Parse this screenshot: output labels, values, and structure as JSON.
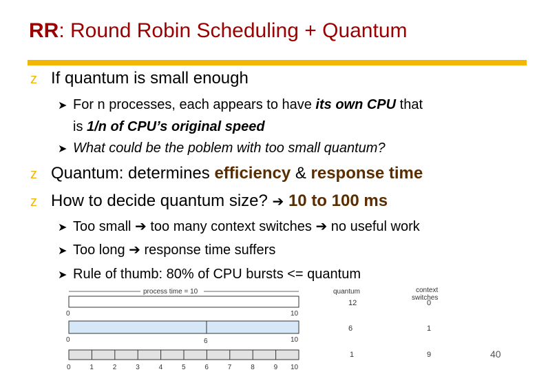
{
  "title": {
    "prefix": "RR",
    "rest": ": Round Robin Scheduling + Quantum"
  },
  "bullets": {
    "q_small": "If quantum is small enough",
    "n_proc_a": "For n processes, each appears to have ",
    "n_proc_b": "its own CPU",
    "n_proc_c": " that",
    "n_proc_d": "is ",
    "n_proc_e": "1/n of CPU’s original speed",
    "problem": "What could be the poblem with too small quantum?",
    "quantum_a": "Quantum: determines ",
    "quantum_b": "efficiency",
    "quantum_c": " & ",
    "quantum_d": "response time",
    "decide_a": "How to decide quantum size? ",
    "decide_b": "10 to 100 ms",
    "too_small_a": "Too small ",
    "too_small_b": " too many context switches ",
    "too_small_c": " no useful work",
    "too_long_a": "Too long ",
    "too_long_b": " response time suffers",
    "rule": "Rule of thumb: 80% of CPU bursts <= quantum"
  },
  "figure": {
    "process_time_label": "process time = 10",
    "col_quantum": "quantum",
    "col_context": "context",
    "col_switches": "switches",
    "rows": [
      {
        "quantum": "12",
        "switches": "0",
        "ticks": [
          "0",
          "10"
        ]
      },
      {
        "quantum": "6",
        "switches": "1",
        "ticks": [
          "0",
          "6",
          "10"
        ]
      },
      {
        "quantum": "1",
        "switches": "9",
        "ticks": [
          "0",
          "1",
          "2",
          "3",
          "4",
          "5",
          "6",
          "7",
          "8",
          "9",
          "10"
        ]
      }
    ]
  },
  "page_number": "40",
  "colors": {
    "title": "#9a0000",
    "accent": "#f2b705",
    "emphasis": "#5a2d00",
    "bar_fill": "#d6e8f7"
  }
}
